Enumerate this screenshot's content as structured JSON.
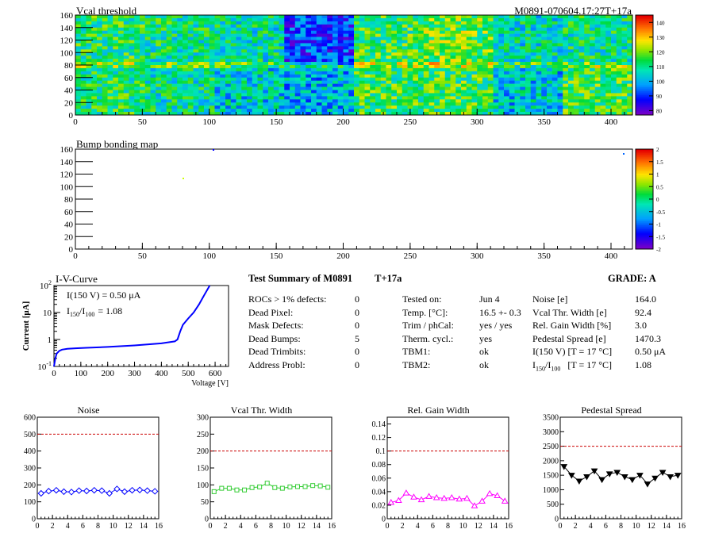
{
  "header": {
    "title_left": "Vcal threshold",
    "title_right": "M0891-070604.17:27T+17a"
  },
  "maps": {
    "vcal": {
      "title": "Vcal threshold",
      "x_ticks": [
        "0",
        "50",
        "100",
        "150",
        "200",
        "250",
        "300",
        "350",
        "400"
      ],
      "y_ticks": [
        "0",
        "20",
        "40",
        "60",
        "80",
        "100",
        "120",
        "140",
        "160"
      ],
      "palette_ticks": [
        "80",
        "90",
        "100",
        "110",
        "120",
        "130",
        "140"
      ]
    },
    "bump": {
      "title": "Bump bonding map",
      "x_ticks": [
        "0",
        "50",
        "100",
        "150",
        "200",
        "250",
        "300",
        "350",
        "400"
      ],
      "y_ticks": [
        "0",
        "20",
        "40",
        "60",
        "80",
        "100",
        "120",
        "140",
        "160"
      ],
      "palette_ticks": [
        "-2",
        "-1.5",
        "-1",
        "-0.5",
        "0",
        "0.5",
        "1",
        "1.5",
        "2"
      ]
    }
  },
  "iv": {
    "title": "I-V-Curve",
    "ylabel": "Current [μA]",
    "xlabel": "Voltage [V]",
    "annot1": "I(150 V) = 0.50 μA",
    "annot2_main": "I",
    "annot2_sub1": "150",
    "annot2_slash": "/I",
    "annot2_sub2": "100",
    "annot2_val": "= 1.08",
    "x_ticks": [
      "0",
      "100",
      "200",
      "300",
      "400",
      "500",
      "600"
    ],
    "y_tick_base": "10",
    "y_tick_exps": [
      "-1",
      "",
      "",
      "2"
    ],
    "y_tick_plain": [
      "1",
      "10"
    ]
  },
  "summary": {
    "title": "Test Summary of M0891",
    "tag": "T+17a",
    "grade": "GRADE:  A",
    "col1": [
      {
        "label": "ROCs > 1% defects:",
        "value": "0"
      },
      {
        "label": "Dead Pixel:",
        "value": "0"
      },
      {
        "label": "Mask Defects:",
        "value": "0"
      },
      {
        "label": "Dead Bumps:",
        "value": "5"
      },
      {
        "label": "Dead Trimbits:",
        "value": "0"
      },
      {
        "label": "Address Probl:",
        "value": "0"
      }
    ],
    "col2": [
      {
        "label": "Tested on:",
        "value": "Jun 4"
      },
      {
        "label": "Temp. [°C]:",
        "value": "16.5 +- 0.3"
      },
      {
        "label": "Trim / phCal:",
        "value": "yes / yes"
      },
      {
        "label": "Therm. cycl.:",
        "value": "yes"
      },
      {
        "label": "TBM1:",
        "value": "ok"
      },
      {
        "label": "TBM2:",
        "value": "ok"
      }
    ],
    "col3": [
      {
        "label": "Noise [e]",
        "value": "164.0"
      },
      {
        "label": "Vcal Thr. Width [e]",
        "value": "92.4"
      },
      {
        "label": "Rel. Gain Width [%]",
        "value": "3.0"
      },
      {
        "label": "Pedestal Spread [e]",
        "value": "1470.3"
      },
      {
        "label": "I(150 V) [T = 17 °C]",
        "value": "0.50 μA"
      },
      {
        "label_main": "I",
        "label_sub1": "150",
        "label_slash": "/I",
        "label_sub2": "100",
        "label_rest": "[T = 17 °C]",
        "value": "1.08"
      }
    ]
  },
  "chart_data": [
    {
      "type": "line",
      "title": "I-V-Curve",
      "xlabel": "Voltage [V]",
      "ylabel": "Current [μA]",
      "xlim": [
        0,
        650
      ],
      "ylim": [
        0.1,
        100
      ],
      "yscale": "log",
      "x": [
        0,
        5,
        10,
        20,
        30,
        50,
        80,
        120,
        200,
        300,
        400,
        450,
        460,
        470,
        480,
        500,
        520,
        540,
        560,
        580
      ],
      "y": [
        0.1,
        0.2,
        0.3,
        0.38,
        0.42,
        0.45,
        0.47,
        0.49,
        0.53,
        0.6,
        0.72,
        0.85,
        1.0,
        2.0,
        3.5,
        6,
        10,
        20,
        45,
        100
      ]
    },
    {
      "type": "line",
      "title": "Noise",
      "xlim": [
        0,
        16
      ],
      "ylim": [
        0,
        600
      ],
      "y_ticks": [
        "0",
        "100",
        "200",
        "300",
        "400",
        "500",
        "600"
      ],
      "x_ticks": [
        "0",
        "2",
        "4",
        "6",
        "8",
        "10",
        "12",
        "14",
        "16"
      ],
      "reference": 500,
      "x": [
        0.5,
        1.5,
        2.5,
        3.5,
        4.5,
        5.5,
        6.5,
        7.5,
        8.5,
        9.5,
        10.5,
        11.5,
        12.5,
        13.5,
        14.5,
        15.5
      ],
      "values": [
        150,
        163,
        168,
        160,
        158,
        166,
        164,
        168,
        166,
        150,
        176,
        160,
        168,
        170,
        166,
        162
      ],
      "color": "#0000ff",
      "marker": "diamond"
    },
    {
      "type": "line",
      "title": "Vcal Thr. Width",
      "xlim": [
        0,
        16
      ],
      "ylim": [
        0,
        300
      ],
      "y_ticks": [
        "0",
        "50",
        "100",
        "150",
        "200",
        "250",
        "300"
      ],
      "x_ticks": [
        "0",
        "2",
        "4",
        "6",
        "8",
        "10",
        "12",
        "14",
        "16"
      ],
      "reference": 200,
      "x": [
        0.5,
        1.5,
        2.5,
        3.5,
        4.5,
        5.5,
        6.5,
        7.5,
        8.5,
        9.5,
        10.5,
        11.5,
        12.5,
        13.5,
        14.5,
        15.5
      ],
      "values": [
        80,
        90,
        90,
        85,
        85,
        92,
        94,
        105,
        92,
        90,
        94,
        95,
        95,
        98,
        97,
        93
      ],
      "color": "#33cc33",
      "marker": "square"
    },
    {
      "type": "line",
      "title": "Rel. Gain Width",
      "xlim": [
        0,
        16
      ],
      "ylim": [
        0,
        0.15
      ],
      "y_ticks": [
        "0",
        "0.02",
        "0.04",
        "0.06",
        "0.08",
        "0.1",
        "0.12",
        "0.14"
      ],
      "x_ticks": [
        "0",
        "2",
        "4",
        "6",
        "8",
        "10",
        "12",
        "14",
        "16"
      ],
      "reference": 0.1,
      "x": [
        0.5,
        1.5,
        2.5,
        3.5,
        4.5,
        5.5,
        6.5,
        7.5,
        8.5,
        9.5,
        10.5,
        11.5,
        12.5,
        13.5,
        14.5,
        15.5
      ],
      "values": [
        0.024,
        0.027,
        0.038,
        0.032,
        0.028,
        0.033,
        0.031,
        0.03,
        0.031,
        0.029,
        0.03,
        0.019,
        0.026,
        0.037,
        0.034,
        0.026
      ],
      "color": "#ff00ff",
      "marker": "triangle-up"
    },
    {
      "type": "line",
      "title": "Pedestal Spread",
      "xlim": [
        0,
        16
      ],
      "ylim": [
        0,
        3500
      ],
      "y_ticks": [
        "0",
        "500",
        "1000",
        "1500",
        "2000",
        "2500",
        "3000",
        "3500"
      ],
      "x_ticks": [
        "0",
        "2",
        "4",
        "6",
        "8",
        "10",
        "12",
        "14",
        "16"
      ],
      "reference": 2500,
      "x": [
        0.5,
        1.5,
        2.5,
        3.5,
        4.5,
        5.5,
        6.5,
        7.5,
        8.5,
        9.5,
        10.5,
        11.5,
        12.5,
        13.5,
        14.5,
        15.5
      ],
      "values": [
        1800,
        1500,
        1300,
        1450,
        1650,
        1350,
        1550,
        1600,
        1450,
        1350,
        1500,
        1200,
        1400,
        1600,
        1450,
        1500
      ],
      "color": "#000000",
      "marker": "triangle-down"
    }
  ]
}
